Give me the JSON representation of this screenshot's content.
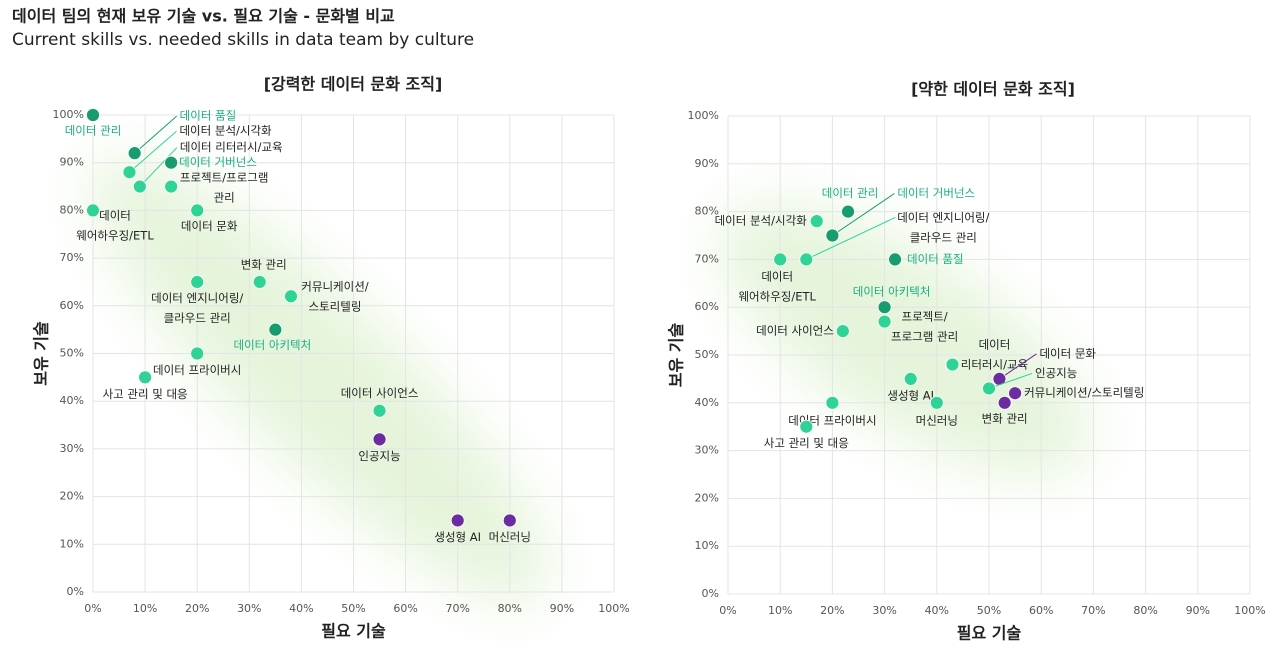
{
  "header": {
    "title": "데이터 팀의 현재 보유 기술 vs. 필요 기술 - 문화별 비교",
    "subtitle": "Current skills vs. needed skills in data team by culture"
  },
  "chart_data": [
    {
      "type": "scatter",
      "title": "[강력한 데이터 문화 조직]",
      "x_label": "필요 기술",
      "y_label": "보유 기술",
      "xlim": [
        0,
        100
      ],
      "ylim": [
        0,
        100
      ],
      "xticks": [
        {
          "value": 0,
          "label": "0%"
        },
        {
          "value": 10,
          "label": "10%"
        },
        {
          "value": 20,
          "label": "20%"
        },
        {
          "value": 30,
          "label": "30%"
        },
        {
          "value": 40,
          "label": "40%"
        },
        {
          "value": 50,
          "label": "50%"
        },
        {
          "value": 60,
          "label": "60%"
        },
        {
          "value": 70,
          "label": "70%"
        },
        {
          "value": 80,
          "label": "80%"
        },
        {
          "value": 90,
          "label": "90%"
        },
        {
          "value": 100,
          "label": "100%"
        }
      ],
      "yticks": [
        {
          "value": 0,
          "label": "0%"
        },
        {
          "value": 10,
          "label": "10%"
        },
        {
          "value": 20,
          "label": "20%"
        },
        {
          "value": 30,
          "label": "30%"
        },
        {
          "value": 40,
          "label": "40%"
        },
        {
          "value": 50,
          "label": "50%"
        },
        {
          "value": 60,
          "label": "60%"
        },
        {
          "value": 70,
          "label": "70%"
        },
        {
          "value": 80,
          "label": "80%"
        },
        {
          "value": 90,
          "label": "90%"
        },
        {
          "value": 100,
          "label": "100%"
        }
      ],
      "grid": true,
      "points": [
        {
          "label": "데이터 관리",
          "x": 0,
          "y": 100,
          "color": "#179c70",
          "label_color": "#1aae82"
        },
        {
          "label": "데이터 품질",
          "x": 8,
          "y": 92,
          "color": "#179c70",
          "label_color": "#1aae82"
        },
        {
          "label": "데이터 분석/시각화",
          "x": 7,
          "y": 88,
          "color": "#2fd396",
          "label_color": "#222222"
        },
        {
          "label": "데이터 리터러시/교육",
          "x": 9,
          "y": 85,
          "color": "#2fd396",
          "label_color": "#222222"
        },
        {
          "label": "데이터 거버넌스",
          "x": 15,
          "y": 90,
          "color": "#179c70",
          "label_color": "#1aae82"
        },
        {
          "label": "프로젝트/프로그램\n관리",
          "x": 15,
          "y": 85,
          "color": "#2fd396",
          "label_color": "#222222"
        },
        {
          "label": "데이터 문화",
          "x": 20,
          "y": 80,
          "color": "#2fd396",
          "label_color": "#222222"
        },
        {
          "label": "데이터\n웨어하우징/ETL",
          "x": 0,
          "y": 80,
          "color": "#2fd396",
          "label_color": "#222222"
        },
        {
          "label": "변화 관리",
          "x": 32,
          "y": 65,
          "color": "#2fd396",
          "label_color": "#222222"
        },
        {
          "label": "데이터 엔지니어링/\n클라우드 관리",
          "x": 20,
          "y": 65,
          "color": "#2fd396",
          "label_color": "#222222"
        },
        {
          "label": "커뮤니케이션/\n스토리텔링",
          "x": 38,
          "y": 62,
          "color": "#2fd396",
          "label_color": "#222222"
        },
        {
          "label": "데이터 아키텍처",
          "x": 35,
          "y": 55,
          "color": "#179c70",
          "label_color": "#1aae82"
        },
        {
          "label": "데이터 프라이버시",
          "x": 20,
          "y": 50,
          "color": "#2fd396",
          "label_color": "#222222"
        },
        {
          "label": "사고 관리 및 대응",
          "x": 10,
          "y": 45,
          "color": "#2fd396",
          "label_color": "#222222"
        },
        {
          "label": "데이터 사이언스",
          "x": 55,
          "y": 38,
          "color": "#2fd396",
          "label_color": "#222222"
        },
        {
          "label": "인공지능",
          "x": 55,
          "y": 32,
          "color": "#6a2c9e",
          "label_color": "#222222"
        },
        {
          "label": "생성형 AI",
          "x": 70,
          "y": 15,
          "color": "#6a2c9e",
          "label_color": "#222222"
        },
        {
          "label": "머신러닝",
          "x": 80,
          "y": 15,
          "color": "#6a2c9e",
          "label_color": "#222222"
        }
      ]
    },
    {
      "type": "scatter",
      "title": "[약한 데이터 문화 조직]",
      "x_label": "필요 기술",
      "y_label": "보유 기술",
      "xlim": [
        0,
        100
      ],
      "ylim": [
        0,
        100
      ],
      "xticks": [
        {
          "value": 0,
          "label": "0%"
        },
        {
          "value": 10,
          "label": "10%"
        },
        {
          "value": 20,
          "label": "20%"
        },
        {
          "value": 30,
          "label": "30%"
        },
        {
          "value": 40,
          "label": "40%"
        },
        {
          "value": 50,
          "label": "50%"
        },
        {
          "value": 60,
          "label": "60%"
        },
        {
          "value": 70,
          "label": "70%"
        },
        {
          "value": 80,
          "label": "80%"
        },
        {
          "value": 90,
          "label": "90%"
        },
        {
          "value": 100,
          "label": "100%"
        }
      ],
      "yticks": [
        {
          "value": 0,
          "label": "0%"
        },
        {
          "value": 10,
          "label": "10%"
        },
        {
          "value": 20,
          "label": "20%"
        },
        {
          "value": 30,
          "label": "30%"
        },
        {
          "value": 40,
          "label": "40%"
        },
        {
          "value": 50,
          "label": "50%"
        },
        {
          "value": 60,
          "label": "60%"
        },
        {
          "value": 70,
          "label": "70%"
        },
        {
          "value": 80,
          "label": "80%"
        },
        {
          "value": 90,
          "label": "90%"
        },
        {
          "value": 100,
          "label": "100%"
        }
      ],
      "grid": true,
      "points": [
        {
          "label": "데이터 관리",
          "x": 23,
          "y": 80,
          "color": "#179c70",
          "label_color": "#1aae82"
        },
        {
          "label": "데이터 분석/시각화",
          "x": 17,
          "y": 78,
          "color": "#2fd396",
          "label_color": "#222222"
        },
        {
          "label": "데이터 거버넌스",
          "x": 20,
          "y": 75,
          "color": "#179c70",
          "label_color": "#1aae82"
        },
        {
          "label": "데이터 엔지니어링/\n클라우드 관리",
          "x": 15,
          "y": 70,
          "color": "#2fd396",
          "label_color": "#222222"
        },
        {
          "label": "데이터\n웨어하우징/ETL",
          "x": 10,
          "y": 70,
          "color": "#2fd396",
          "label_color": "#222222"
        },
        {
          "label": "데이터 품질",
          "x": 32,
          "y": 70,
          "color": "#179c70",
          "label_color": "#1aae82"
        },
        {
          "label": "데이터 아키텍처",
          "x": 30,
          "y": 60,
          "color": "#179c70",
          "label_color": "#1aae82"
        },
        {
          "label": "프로젝트/\n프로그램 관리",
          "x": 30,
          "y": 57,
          "color": "#2fd396",
          "label_color": "#222222"
        },
        {
          "label": "데이터 사이언스",
          "x": 22,
          "y": 55,
          "color": "#2fd396",
          "label_color": "#222222"
        },
        {
          "label": "데이터\n리터러시/교육",
          "x": 43,
          "y": 48,
          "color": "#2fd396",
          "label_color": "#222222"
        },
        {
          "label": "데이터 문화",
          "x": 52,
          "y": 45,
          "color": "#6a2c9e",
          "label_color": "#222222"
        },
        {
          "label": "인공지능",
          "x": 50,
          "y": 43,
          "color": "#2fd396",
          "label_color": "#222222"
        },
        {
          "label": "커뮤니케이션/스토리텔링",
          "x": 55,
          "y": 42,
          "color": "#6a2c9e",
          "label_color": "#222222"
        },
        {
          "label": "변화 관리",
          "x": 53,
          "y": 40,
          "color": "#6a2c9e",
          "label_color": "#222222"
        },
        {
          "label": "생성형 AI",
          "x": 35,
          "y": 45,
          "color": "#2fd396",
          "label_color": "#222222"
        },
        {
          "label": "머신러닝",
          "x": 40,
          "y": 40,
          "color": "#2fd396",
          "label_color": "#222222"
        },
        {
          "label": "데이터 프라이버시",
          "x": 20,
          "y": 40,
          "color": "#2fd396",
          "label_color": "#222222"
        },
        {
          "label": "사고 관리 및 대응",
          "x": 15,
          "y": 35,
          "color": "#2fd396",
          "label_color": "#222222"
        }
      ]
    }
  ]
}
